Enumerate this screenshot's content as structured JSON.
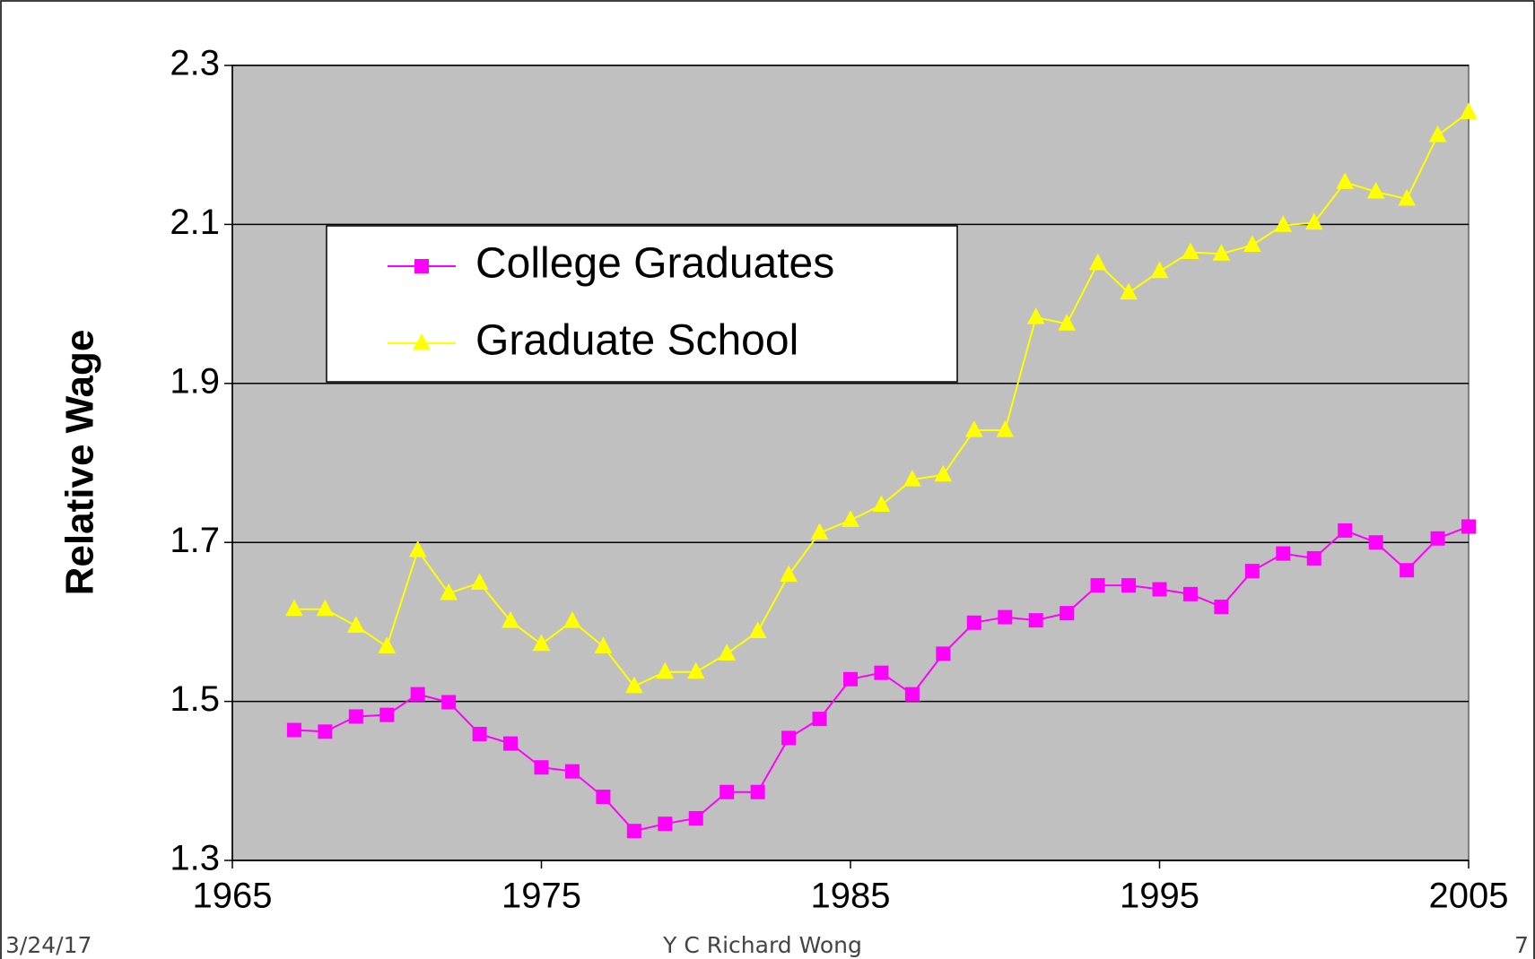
{
  "chart_data": {
    "type": "line",
    "y_label": "Relative Wage",
    "x": [
      1967,
      1968,
      1969,
      1970,
      1971,
      1972,
      1973,
      1974,
      1975,
      1976,
      1977,
      1978,
      1979,
      1980,
      1981,
      1982,
      1983,
      1984,
      1985,
      1986,
      1987,
      1988,
      1989,
      1990,
      1991,
      1992,
      1993,
      1994,
      1995,
      1996,
      1997,
      1998,
      1999,
      2000,
      2001,
      2002,
      2003,
      2004,
      2005
    ],
    "series": [
      {
        "name": "College Graduates",
        "color": "#ff00ff",
        "marker": "square",
        "values": [
          1.464,
          1.462,
          1.481,
          1.483,
          1.509,
          1.499,
          1.459,
          1.447,
          1.417,
          1.412,
          1.38,
          1.337,
          1.346,
          1.353,
          1.386,
          1.386,
          1.454,
          1.478,
          1.528,
          1.536,
          1.509,
          1.56,
          1.599,
          1.606,
          1.602,
          1.611,
          1.646,
          1.646,
          1.641,
          1.635,
          1.619,
          1.664,
          1.686,
          1.68,
          1.715,
          1.7,
          1.665,
          1.705,
          1.72
        ]
      },
      {
        "name": "Graduate School",
        "color": "#ffff00",
        "marker": "triangle",
        "values": [
          1.616,
          1.616,
          1.595,
          1.569,
          1.69,
          1.636,
          1.649,
          1.601,
          1.572,
          1.601,
          1.569,
          1.519,
          1.537,
          1.537,
          1.56,
          1.588,
          1.659,
          1.712,
          1.728,
          1.747,
          1.779,
          1.785,
          1.841,
          1.841,
          1.983,
          1.975,
          2.051,
          2.014,
          2.041,
          2.065,
          2.063,
          2.074,
          2.099,
          2.102,
          2.153,
          2.141,
          2.132,
          2.212,
          2.241
        ]
      }
    ],
    "xlim": [
      1965,
      2005
    ],
    "xticks": [
      1965,
      1975,
      1985,
      1995,
      2005
    ],
    "ylim": [
      1.3,
      2.3
    ],
    "yticks": [
      1.3,
      1.5,
      1.7,
      1.9,
      2.1,
      2.3
    ],
    "grid": true,
    "plot_background": "#c0c0c0"
  },
  "footer": {
    "date": "3/24/17",
    "author": "Y C Richard Wong",
    "page": "7"
  }
}
